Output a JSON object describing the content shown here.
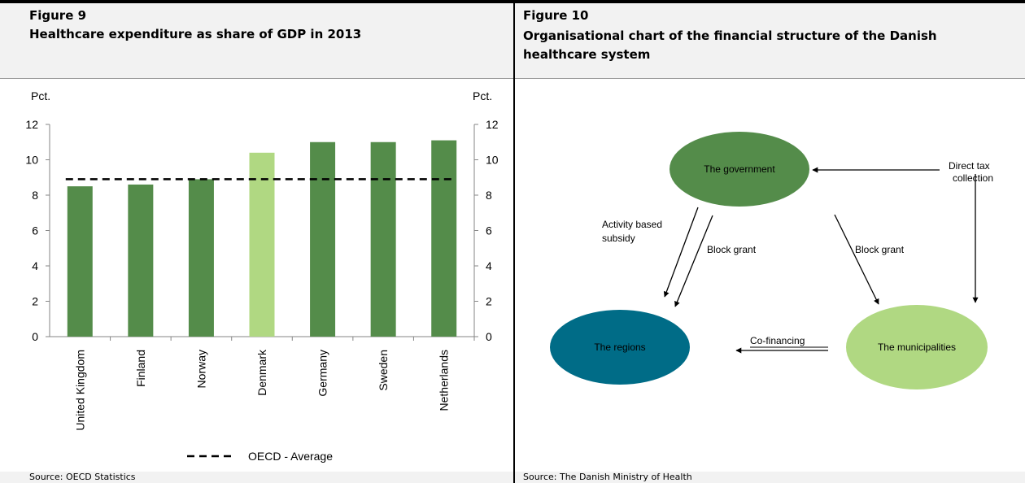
{
  "figure9": {
    "label": "Figure 9",
    "title": "Healthcare expenditure as share of GDP in 2013",
    "source": "Source: OECD Statistics"
  },
  "figure10": {
    "label": "Figure 10",
    "title": "Organisational chart of the financial structure of the Danish healthcare system",
    "source": "Source: The Danish Ministry of Health",
    "nodes": {
      "government": "The government",
      "regions": "The regions",
      "municipalities": "The municipalities"
    },
    "edges": {
      "activity_line1": "Activity based",
      "activity_line2": "subsidy",
      "block_grant_regions": "Block grant",
      "block_grant_municipalities": "Block grant",
      "tax_line1": "Direct tax",
      "tax_line2": "collection",
      "cofinancing": "Co-financing"
    },
    "colors": {
      "government": "#548c4a",
      "regions": "#006c87",
      "municipalities": "#b0d882"
    }
  },
  "chart_data": {
    "type": "bar",
    "title": "Healthcare expenditure as share of GDP in 2013",
    "ylabel_left": "Pct.",
    "ylabel_right": "Pct.",
    "ylim": [
      0,
      12
    ],
    "yticks": [
      0,
      2,
      4,
      6,
      8,
      10,
      12
    ],
    "categories": [
      "United Kingdom",
      "Finland",
      "Norway",
      "Denmark",
      "Germany",
      "Sweden",
      "Netherlands"
    ],
    "values": [
      8.5,
      8.6,
      8.9,
      10.4,
      11.0,
      11.0,
      11.1
    ],
    "highlight_category": "Denmark",
    "bar_color": "#548c4a",
    "highlight_color": "#b0d882",
    "reference_line": {
      "name": "OECD - Average",
      "value": 8.9,
      "style": "dashed"
    },
    "legend_position": "bottom",
    "grid": false
  }
}
